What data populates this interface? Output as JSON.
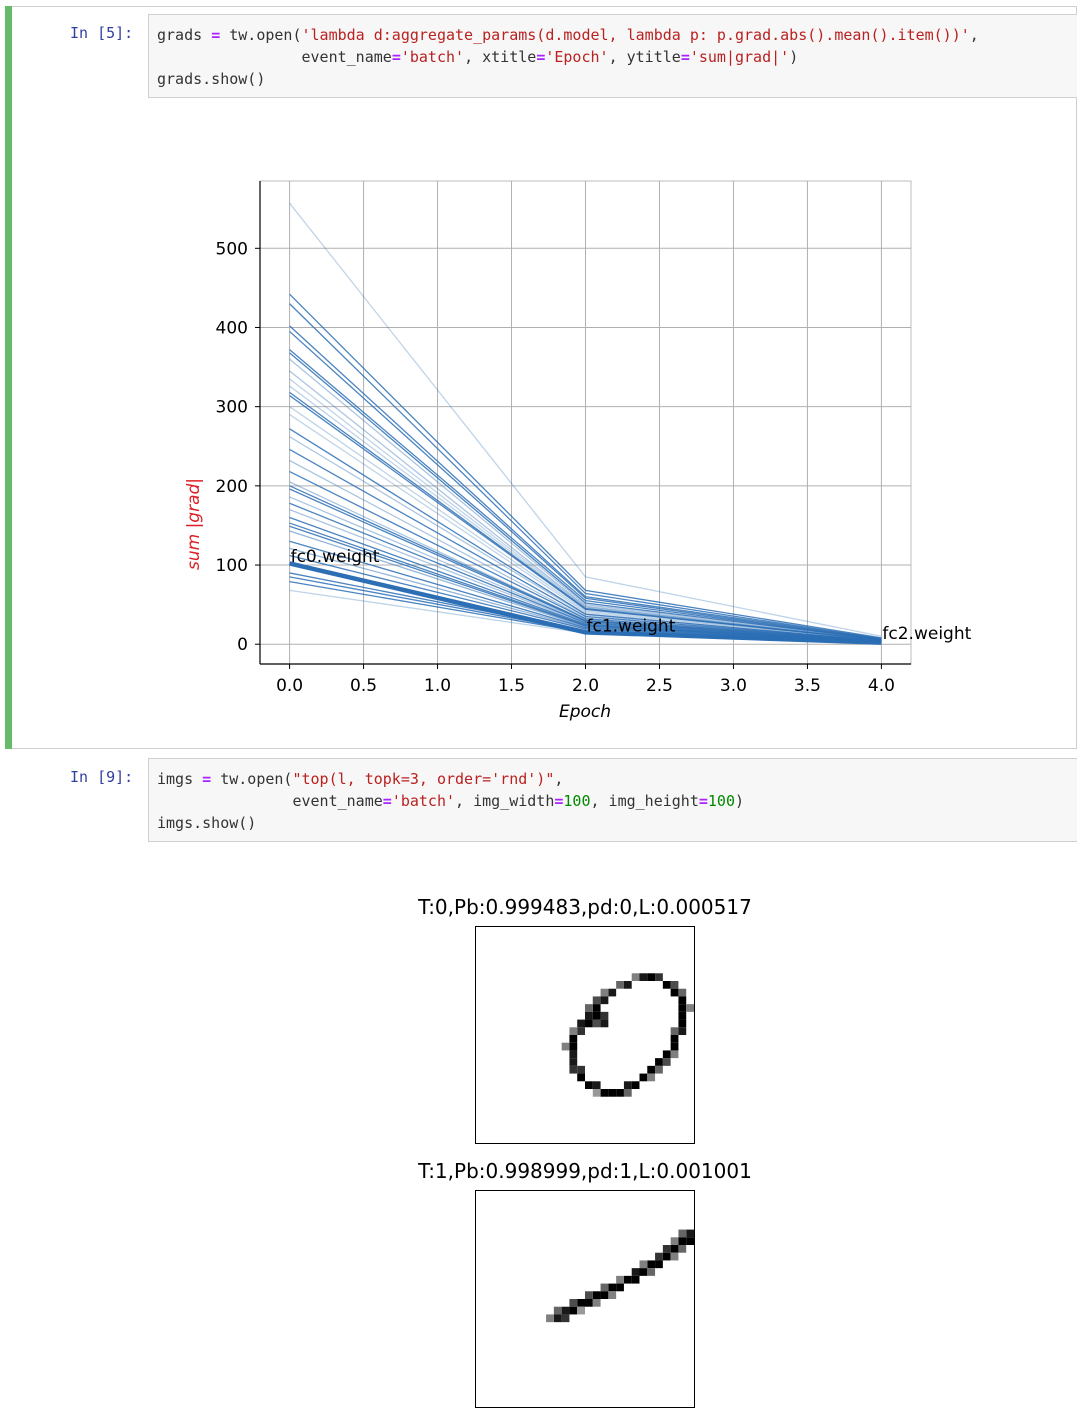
{
  "cells": [
    {
      "prompt": "In [5]:",
      "code_lines": [
        [
          "grads ",
          "=",
          " tw.open(",
          "'lambda d:aggregate_params(d.model, lambda p: p.grad.abs().mean().item())'",
          ","
        ],
        [
          "                event_name",
          "=",
          "'batch'",
          ", xtitle",
          "=",
          "'Epoch'",
          ", ytitle",
          "=",
          "'sum|grad|'",
          ")"
        ],
        [
          "grads.show()"
        ]
      ]
    },
    {
      "prompt": "In [9]:",
      "code_lines": [
        [
          "imgs ",
          "=",
          " tw.open(",
          "\"top(l, topk=3, order='rnd')\"",
          ","
        ],
        [
          "               event_name",
          "=",
          "'batch'",
          ", img_width",
          "=",
          "100",
          ", img_height",
          "=",
          "100",
          ")"
        ],
        [
          "imgs.show()"
        ]
      ]
    }
  ],
  "chart_data": {
    "type": "line",
    "xlabel": "Epoch",
    "ylabel": "sum |grad|",
    "xlim": [
      -0.2,
      4.2
    ],
    "ylim": [
      -25,
      585
    ],
    "xticks": [
      "0.0",
      "0.5",
      "1.0",
      "1.5",
      "2.0",
      "2.5",
      "3.0",
      "3.5",
      "4.0"
    ],
    "yticks": [
      "0",
      "100",
      "200",
      "300",
      "400",
      "500"
    ],
    "grid": true,
    "line_color": "#2c6fb5",
    "annotations": [
      {
        "text": "fc0.weight",
        "x": 0.0,
        "y": 100
      },
      {
        "text": "fc1.weight",
        "x": 2.0,
        "y": 12
      },
      {
        "text": "fc2.weight",
        "x": 4.0,
        "y": 3
      }
    ],
    "series": [
      {
        "values": [
          102,
          15,
          2
        ],
        "highlight": true
      },
      {
        "values": [
          557,
          85,
          10
        ],
        "alpha": 0.3
      },
      {
        "values": [
          442,
          68,
          8
        ]
      },
      {
        "values": [
          430,
          64,
          7
        ]
      },
      {
        "values": [
          402,
          60,
          7
        ]
      },
      {
        "values": [
          395,
          58,
          6
        ]
      },
      {
        "values": [
          372,
          55,
          6
        ]
      },
      {
        "values": [
          368,
          52,
          6
        ]
      },
      {
        "values": [
          360,
          50,
          6
        ],
        "alpha": 0.4
      },
      {
        "values": [
          345,
          48,
          5
        ],
        "alpha": 0.4
      },
      {
        "values": [
          335,
          47,
          5
        ],
        "alpha": 0.3
      },
      {
        "values": [
          326,
          46,
          5
        ],
        "alpha": 0.3
      },
      {
        "values": [
          318,
          45,
          5
        ]
      },
      {
        "values": [
          314,
          44,
          5
        ]
      },
      {
        "values": [
          300,
          42,
          5
        ],
        "alpha": 0.3
      },
      {
        "values": [
          290,
          40,
          5
        ],
        "alpha": 0.3
      },
      {
        "values": [
          272,
          38,
          4
        ]
      },
      {
        "values": [
          262,
          37,
          4
        ],
        "alpha": 0.4
      },
      {
        "values": [
          246,
          35,
          4
        ]
      },
      {
        "values": [
          232,
          33,
          4
        ],
        "alpha": 0.4
      },
      {
        "values": [
          218,
          32,
          4
        ]
      },
      {
        "values": [
          205,
          30,
          4
        ],
        "alpha": 0.4
      },
      {
        "values": [
          200,
          30,
          4
        ]
      },
      {
        "values": [
          196,
          29,
          3
        ]
      },
      {
        "values": [
          186,
          28,
          3
        ],
        "alpha": 0.4
      },
      {
        "values": [
          178,
          27,
          3
        ]
      },
      {
        "values": [
          170,
          26,
          3
        ],
        "alpha": 0.4
      },
      {
        "values": [
          160,
          25,
          3
        ]
      },
      {
        "values": [
          153,
          24,
          3
        ]
      },
      {
        "values": [
          149,
          23,
          3
        ]
      },
      {
        "values": [
          143,
          22,
          3
        ],
        "alpha": 0.5
      },
      {
        "values": [
          130,
          21,
          3
        ]
      },
      {
        "values": [
          121,
          20,
          3
        ],
        "alpha": 0.5
      },
      {
        "values": [
          112,
          19,
          3
        ]
      },
      {
        "values": [
          90,
          17,
          2
        ]
      },
      {
        "values": [
          85,
          16,
          2
        ]
      },
      {
        "values": [
          79,
          15,
          2
        ]
      },
      {
        "values": [
          68,
          14,
          2
        ],
        "alpha": 0.3
      }
    ]
  },
  "image_panels": [
    {
      "title": "T:0,Pb:0.999483,pd:0,L:0.000517",
      "digit": "zero",
      "pixels": [
        [
          21,
          6,
          0.9
        ],
        [
          22,
          6,
          1
        ],
        [
          23,
          6,
          0.8
        ],
        [
          20,
          6,
          0.5
        ],
        [
          19,
          7,
          0.9
        ],
        [
          18,
          7,
          0.6
        ],
        [
          24,
          7,
          1
        ],
        [
          25,
          7,
          0.7
        ],
        [
          17,
          8,
          0.9
        ],
        [
          16,
          8,
          0.5
        ],
        [
          25,
          8,
          1
        ],
        [
          26,
          8,
          0.6
        ],
        [
          16,
          9,
          0.9
        ],
        [
          15,
          9,
          0.7
        ],
        [
          26,
          9,
          1
        ],
        [
          15,
          10,
          1
        ],
        [
          14,
          10,
          0.6
        ],
        [
          26,
          10,
          1
        ],
        [
          27,
          10,
          0.5
        ],
        [
          14,
          11,
          0.9
        ],
        [
          15,
          11,
          1
        ],
        [
          16,
          11,
          0.8
        ],
        [
          26,
          11,
          1
        ],
        [
          13,
          12,
          0.9
        ],
        [
          14,
          12,
          1
        ],
        [
          15,
          12,
          0.7
        ],
        [
          16,
          12,
          0.9
        ],
        [
          26,
          12,
          1
        ],
        [
          13,
          13,
          0.8
        ],
        [
          12,
          13,
          0.5
        ],
        [
          26,
          13,
          0.9
        ],
        [
          25,
          13,
          0.6
        ],
        [
          12,
          14,
          1
        ],
        [
          25,
          14,
          1
        ],
        [
          12,
          15,
          1
        ],
        [
          11,
          15,
          0.5
        ],
        [
          25,
          15,
          1
        ],
        [
          12,
          16,
          0.9
        ],
        [
          24,
          16,
          1
        ],
        [
          25,
          16,
          0.5
        ],
        [
          12,
          17,
          0.9
        ],
        [
          23,
          17,
          1
        ],
        [
          24,
          17,
          0.7
        ],
        [
          12,
          18,
          0.8
        ],
        [
          13,
          18,
          0.8
        ],
        [
          22,
          18,
          1
        ],
        [
          23,
          18,
          0.6
        ],
        [
          13,
          19,
          1
        ],
        [
          21,
          19,
          1
        ],
        [
          22,
          19,
          0.5
        ],
        [
          14,
          20,
          1
        ],
        [
          15,
          20,
          0.9
        ],
        [
          19,
          20,
          0.9
        ],
        [
          20,
          20,
          1
        ],
        [
          16,
          21,
          1
        ],
        [
          17,
          21,
          1
        ],
        [
          18,
          21,
          1
        ],
        [
          15,
          21,
          0.4
        ],
        [
          19,
          21,
          0.6
        ]
      ]
    },
    {
      "title": "T:1,Pb:0.998999,pd:1,L:0.001001",
      "digit": "one",
      "pixels": [
        [
          27,
          5,
          0.9
        ],
        [
          26,
          5,
          0.6
        ],
        [
          27,
          6,
          1
        ],
        [
          26,
          6,
          1
        ],
        [
          25,
          6,
          0.5
        ],
        [
          25,
          7,
          1
        ],
        [
          24,
          7,
          0.8
        ],
        [
          26,
          7,
          0.6
        ],
        [
          24,
          8,
          1
        ],
        [
          23,
          8,
          0.8
        ],
        [
          25,
          8,
          0.5
        ],
        [
          22,
          9,
          1
        ],
        [
          23,
          9,
          1
        ],
        [
          21,
          9,
          0.5
        ],
        [
          21,
          10,
          1
        ],
        [
          20,
          10,
          0.9
        ],
        [
          22,
          10,
          0.6
        ],
        [
          19,
          11,
          1
        ],
        [
          20,
          11,
          1
        ],
        [
          18,
          11,
          0.5
        ],
        [
          17,
          12,
          1
        ],
        [
          18,
          12,
          1
        ],
        [
          16,
          12,
          0.6
        ],
        [
          15,
          13,
          1
        ],
        [
          16,
          13,
          1
        ],
        [
          14,
          13,
          0.7
        ],
        [
          17,
          13,
          0.5
        ],
        [
          13,
          14,
          1
        ],
        [
          14,
          14,
          1
        ],
        [
          12,
          14,
          0.7
        ],
        [
          15,
          14,
          0.5
        ],
        [
          11,
          15,
          0.9
        ],
        [
          12,
          15,
          1
        ],
        [
          10,
          15,
          0.6
        ],
        [
          13,
          15,
          0.4
        ],
        [
          10,
          16,
          0.9
        ],
        [
          11,
          16,
          0.8
        ],
        [
          9,
          16,
          0.5
        ]
      ]
    }
  ]
}
